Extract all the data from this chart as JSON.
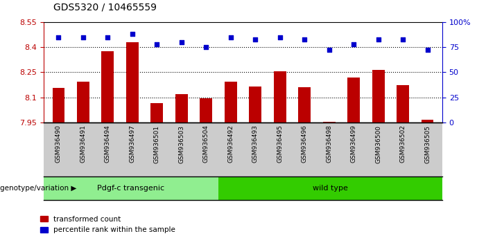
{
  "title": "GDS5320 / 10465559",
  "samples": [
    "GSM936490",
    "GSM936491",
    "GSM936494",
    "GSM936497",
    "GSM936501",
    "GSM936503",
    "GSM936504",
    "GSM936492",
    "GSM936493",
    "GSM936495",
    "GSM936496",
    "GSM936498",
    "GSM936499",
    "GSM936500",
    "GSM936502",
    "GSM936505"
  ],
  "red_values": [
    8.155,
    8.195,
    8.375,
    8.43,
    8.065,
    8.12,
    8.095,
    8.195,
    8.165,
    8.255,
    8.16,
    7.955,
    8.22,
    8.265,
    8.175,
    7.965
  ],
  "blue_values": [
    85,
    85,
    85,
    88,
    78,
    80,
    75,
    85,
    83,
    85,
    83,
    72,
    78,
    83,
    83,
    72
  ],
  "group1_label": "Pdgf-c transgenic",
  "group1_count": 7,
  "group2_label": "wild type",
  "group2_count": 9,
  "group_label": "genotype/variation",
  "ylim_left": [
    7.95,
    8.55
  ],
  "ylim_right": [
    0,
    100
  ],
  "yticks_left": [
    7.95,
    8.1,
    8.25,
    8.4,
    8.55
  ],
  "yticks_right": [
    0,
    25,
    50,
    75,
    100
  ],
  "ytick_labels_left": [
    "7.95",
    "8.1",
    "8.25",
    "8.4",
    "8.55"
  ],
  "ytick_labels_right": [
    "0",
    "25",
    "50",
    "75",
    "100%"
  ],
  "red_color": "#BB0000",
  "blue_color": "#0000CC",
  "group1_color": "#90EE90",
  "group2_color": "#33CC00",
  "bg_color": "#FFFFFF",
  "bar_width": 0.5,
  "legend_red": "transformed count",
  "legend_blue": "percentile rank within the sample"
}
